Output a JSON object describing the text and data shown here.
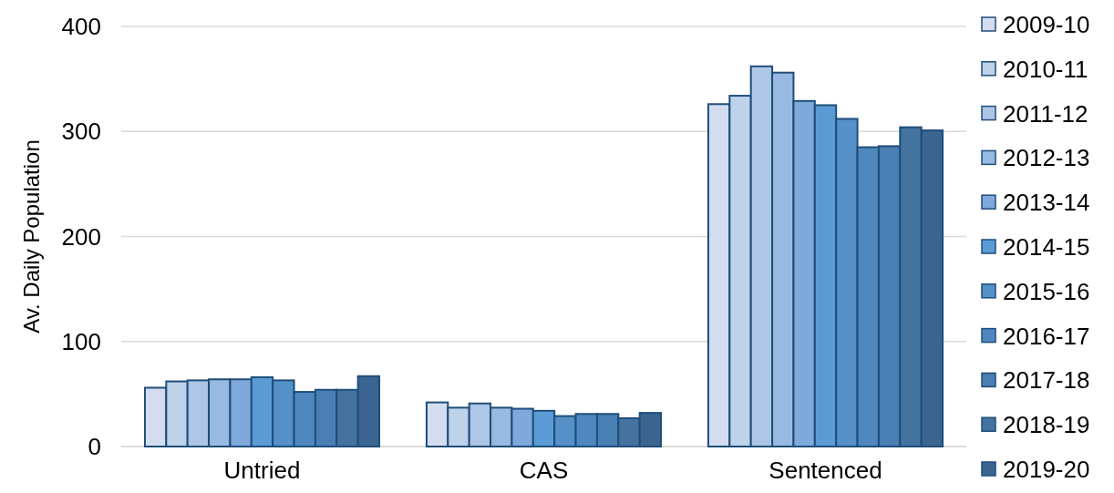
{
  "chart_data": {
    "type": "bar",
    "ylabel": "Av. Daily Population",
    "categories": [
      "Untried",
      "CAS",
      "Sentenced"
    ],
    "series": [
      {
        "name": "2009-10",
        "color": "#d3ddef",
        "values": [
          56,
          42,
          326
        ]
      },
      {
        "name": "2010-11",
        "color": "#bed2ea",
        "values": [
          62,
          37,
          334
        ]
      },
      {
        "name": "2011-12",
        "color": "#adc6e6",
        "values": [
          63,
          41,
          362
        ]
      },
      {
        "name": "2012-13",
        "color": "#98b9e1",
        "values": [
          64,
          37,
          356
        ]
      },
      {
        "name": "2013-14",
        "color": "#7fa9db",
        "values": [
          64,
          36,
          329
        ]
      },
      {
        "name": "2014-15",
        "color": "#5b9bd5",
        "values": [
          66,
          34,
          325
        ]
      },
      {
        "name": "2015-16",
        "color": "#5590c9",
        "values": [
          63,
          29,
          312
        ]
      },
      {
        "name": "2016-17",
        "color": "#4f88be",
        "values": [
          52,
          31,
          285
        ]
      },
      {
        "name": "2017-18",
        "color": "#4a7fb3",
        "values": [
          54,
          31,
          286
        ]
      },
      {
        "name": "2018-19",
        "color": "#44739f",
        "values": [
          54,
          27,
          304
        ]
      },
      {
        "name": "2019-20",
        "color": "#3b6590",
        "values": [
          67,
          32,
          301
        ]
      }
    ],
    "ylim": [
      0,
      400
    ],
    "yticks": [
      0,
      100,
      200,
      300,
      400
    ],
    "grid": "y",
    "legend": "right"
  }
}
